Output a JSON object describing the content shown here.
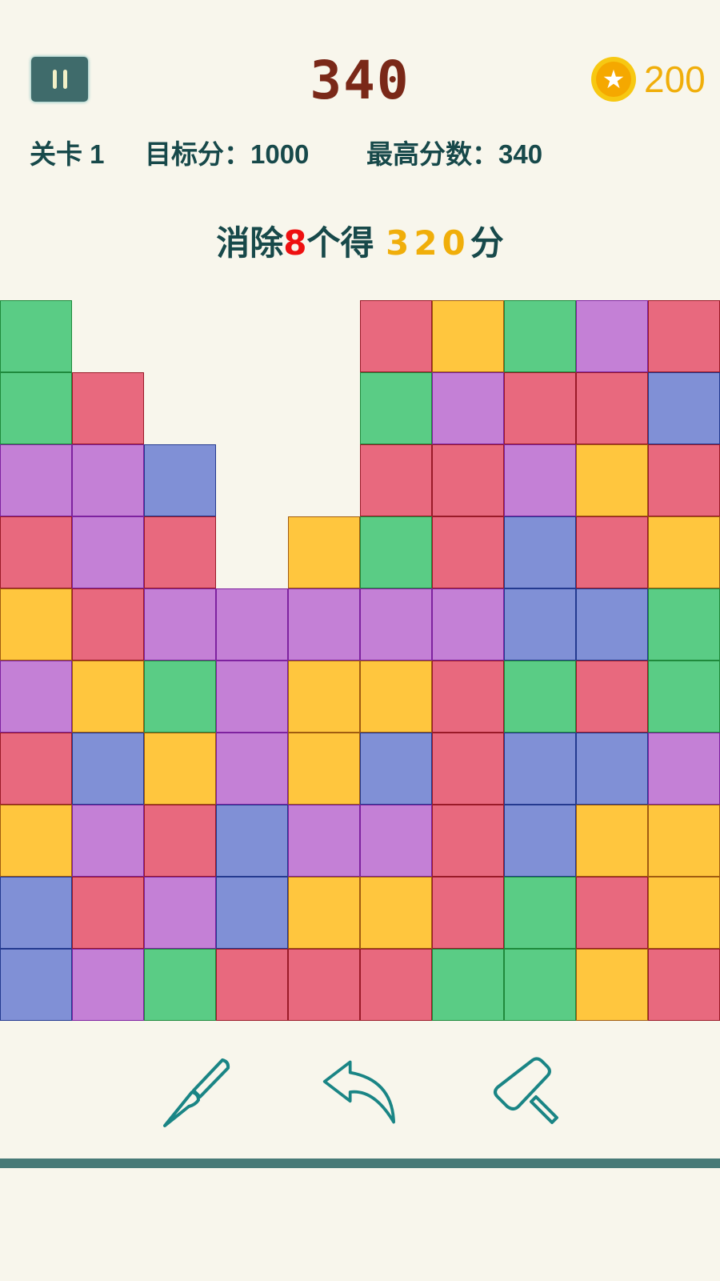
{
  "header": {
    "score": "340",
    "coins": "200",
    "pause_icon": "pause-icon",
    "coin_icon": "star-coin-icon"
  },
  "info": {
    "level": "关卡 1",
    "target": "目标分：1000",
    "best": "最高分数：340"
  },
  "hint": {
    "prefix": "消除",
    "count": "8",
    "middle": "个得",
    "points": "320",
    "suffix": "分"
  },
  "colors": {
    "G": [
      "#5acc85",
      "#1f8a3c"
    ],
    "R": [
      "#e8697e",
      "#9a1a28"
    ],
    "P": [
      "#c480d6",
      "#7e22a0"
    ],
    "B": [
      "#8090d6",
      "#243a90"
    ],
    "Y": [
      "#ffc63e",
      "#a05c10"
    ]
  },
  "board": [
    "G....RYGPR",
    "GR...GPRRB",
    "PPB..RRPYR",
    "RPR.YGRBRY",
    "YRPPPPPBBG",
    "PYGPYYRGRG",
    "RBYPYBRBBP",
    "YPRBPPRBYY",
    "BRPBYYRGRY",
    "BPGRRRGGYR"
  ],
  "tools": [
    {
      "name": "brush",
      "icon": "brush-icon"
    },
    {
      "name": "undo",
      "icon": "undo-icon"
    },
    {
      "name": "hammer",
      "icon": "hammer-icon"
    }
  ]
}
